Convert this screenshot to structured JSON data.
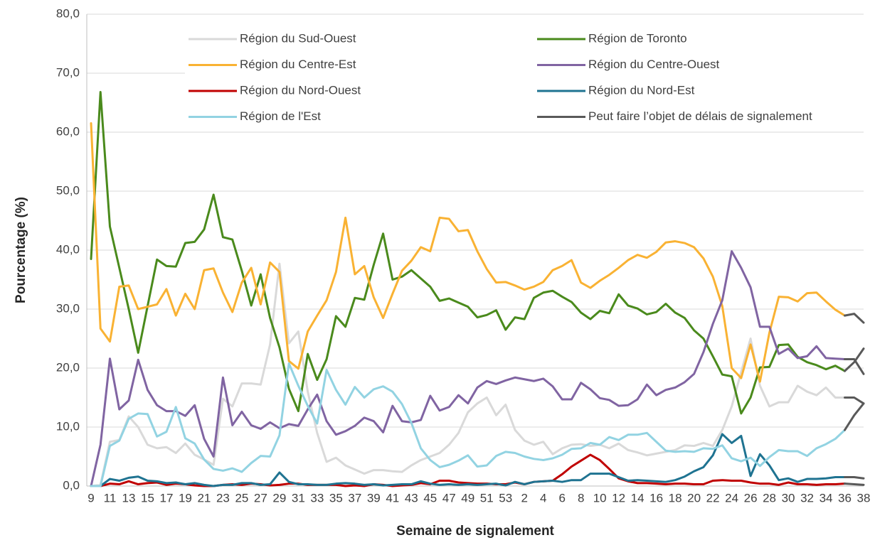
{
  "chart_data": {
    "type": "line",
    "ylabel": "Pourcentage (%)",
    "xlabel": "Semaine de signalement",
    "categories": [
      "9",
      null,
      "11",
      null,
      "13",
      null,
      "15",
      null,
      "17",
      null,
      "19",
      null,
      "21",
      null,
      "23",
      null,
      "25",
      null,
      "27",
      null,
      "29",
      null,
      "31",
      null,
      "33",
      null,
      "35",
      null,
      "37",
      null,
      "39",
      null,
      "41",
      null,
      "43",
      null,
      "45",
      null,
      "47",
      null,
      "49",
      null,
      "51",
      null,
      "53",
      null,
      "2",
      null,
      "4",
      null,
      "6",
      null,
      "8",
      null,
      "10",
      null,
      "12",
      null,
      "14",
      null,
      "16",
      null,
      "18",
      null,
      "20",
      null,
      "22",
      null,
      "24",
      null,
      "26",
      null,
      "28",
      null,
      "30",
      null,
      "32",
      null,
      "34",
      null,
      "36",
      null,
      "38"
    ],
    "ylim": [
      0,
      80
    ],
    "yticks": [
      {
        "value": 0,
        "label": "0,0"
      },
      {
        "value": 10,
        "label": "10,0"
      },
      {
        "value": 20,
        "label": "20,0"
      },
      {
        "value": 30,
        "label": "30,0"
      },
      {
        "value": 40,
        "label": "40,0"
      },
      {
        "value": 50,
        "label": "50,0"
      },
      {
        "value": 60,
        "label": "60,0"
      },
      {
        "value": 70,
        "label": "70,0"
      },
      {
        "value": 80,
        "label": "80,0"
      }
    ],
    "grid": true,
    "delayed_from": "36",
    "series": [
      {
        "name": "Région du Sud-Ouest",
        "color": "#d9d9d9",
        "values": [
          0.0,
          0.2,
          7.5,
          7.8,
          11.8,
          10.0,
          7.0,
          6.4,
          6.6,
          5.6,
          7.2,
          5.3,
          4.5,
          3.6,
          14.8,
          13.5,
          17.4,
          17.4,
          17.2,
          24.0,
          37.7,
          24.2,
          26.2,
          16.0,
          9.0,
          4.1,
          4.8,
          3.5,
          2.8,
          2.1,
          2.7,
          2.7,
          2.5,
          2.4,
          3.5,
          4.4,
          5.0,
          5.6,
          7.0,
          9.0,
          12.5,
          14.0,
          15.0,
          12.0,
          13.8,
          9.5,
          7.7,
          7.0,
          7.5,
          5.4,
          6.4,
          7.0,
          7.1,
          6.8,
          7.0,
          6.4,
          7.2,
          6.1,
          5.7,
          5.2,
          5.5,
          5.8,
          6.1,
          6.9,
          6.8,
          7.3,
          6.8,
          9.5,
          13.5,
          19.3,
          25.0,
          17.0,
          13.5,
          14.2,
          14.2,
          17.0,
          16.0,
          15.4,
          16.7,
          15.0,
          15.0,
          15.0,
          14.0
        ]
      },
      {
        "name": "Région de Toronto",
        "color": "#4a8a1c",
        "values": [
          38.5,
          66.8,
          44.0,
          37.0,
          30.0,
          22.6,
          30.5,
          38.4,
          37.3,
          37.2,
          41.2,
          41.4,
          43.5,
          49.4,
          42.2,
          41.8,
          36.5,
          30.6,
          35.9,
          28.5,
          23.5,
          16.5,
          12.7,
          22.4,
          18.0,
          21.5,
          28.8,
          27.0,
          31.9,
          31.6,
          37.5,
          42.8,
          35.0,
          35.5,
          36.6,
          35.2,
          33.8,
          31.4,
          31.8,
          31.1,
          30.4,
          28.6,
          29.0,
          29.8,
          26.5,
          28.6,
          28.3,
          31.9,
          32.8,
          33.1,
          32.1,
          31.2,
          29.4,
          28.3,
          29.7,
          29.3,
          32.5,
          30.6,
          30.1,
          29.1,
          29.5,
          30.9,
          29.4,
          28.5,
          26.4,
          25.0,
          22.0,
          18.9,
          18.6,
          12.3,
          15.0,
          20.1,
          20.2,
          23.9,
          24.0,
          21.9,
          21.0,
          20.5,
          19.8,
          20.4,
          19.5,
          21.0,
          23.3
        ]
      },
      {
        "name": "Région du Centre-Est",
        "color": "#f9b233",
        "values": [
          61.5,
          26.7,
          24.5,
          33.8,
          34.0,
          30.0,
          30.4,
          30.8,
          33.4,
          28.9,
          32.6,
          30.0,
          36.6,
          36.9,
          32.8,
          29.5,
          34.5,
          37.0,
          30.8,
          37.9,
          36.3,
          21.2,
          19.9,
          26.2,
          28.9,
          31.5,
          36.3,
          45.5,
          35.9,
          37.3,
          32.0,
          28.5,
          32.6,
          36.5,
          38.2,
          40.5,
          39.8,
          45.5,
          45.3,
          43.2,
          43.4,
          39.8,
          36.8,
          34.5,
          34.6,
          34.0,
          33.3,
          33.8,
          34.6,
          36.6,
          37.3,
          38.3,
          34.5,
          33.6,
          34.8,
          35.8,
          37.0,
          38.3,
          39.2,
          38.7,
          39.7,
          41.3,
          41.5,
          41.2,
          40.5,
          38.6,
          35.5,
          30.5,
          20.0,
          18.3,
          24.0,
          17.7,
          26.0,
          32.1,
          32.0,
          31.3,
          32.7,
          32.8,
          31.3,
          29.9,
          28.9,
          29.2,
          27.7
        ]
      },
      {
        "name": "Région du Centre-Ouest",
        "color": "#8064a2",
        "values": [
          0.0,
          7.0,
          21.6,
          13.0,
          14.5,
          21.4,
          16.3,
          13.7,
          12.7,
          12.7,
          11.9,
          13.7,
          8.0,
          5.0,
          18.4,
          10.3,
          12.6,
          10.3,
          9.7,
          10.8,
          9.8,
          10.5,
          10.2,
          13.0,
          15.5,
          11.0,
          8.7,
          9.3,
          10.2,
          11.6,
          11.0,
          9.1,
          13.6,
          11.0,
          10.8,
          11.2,
          15.3,
          12.8,
          13.4,
          15.4,
          14.0,
          16.7,
          17.8,
          17.3,
          17.9,
          18.4,
          18.1,
          17.8,
          18.2,
          16.9,
          14.7,
          14.7,
          17.5,
          16.4,
          14.9,
          14.6,
          13.6,
          13.7,
          14.7,
          17.2,
          15.4,
          16.3,
          16.7,
          17.6,
          19.0,
          22.7,
          27.5,
          31.5,
          39.8,
          37.0,
          33.7,
          27.0,
          27.0,
          22.4,
          23.3,
          21.7,
          22.0,
          23.7,
          21.7,
          21.6,
          21.5,
          21.5,
          19.0
        ]
      },
      {
        "name": "Région du Nord-Ouest",
        "color": "#c00000",
        "values": [
          0.0,
          0.0,
          0.4,
          0.3,
          0.8,
          0.3,
          0.5,
          0.6,
          0.2,
          0.4,
          0.3,
          0.1,
          0.0,
          0.0,
          0.2,
          0.3,
          0.2,
          0.4,
          0.3,
          0.1,
          0.2,
          0.4,
          0.4,
          0.2,
          0.2,
          0.2,
          0.2,
          0.0,
          0.1,
          0.0,
          0.3,
          0.2,
          0.0,
          0.1,
          0.2,
          0.5,
          0.3,
          0.9,
          0.9,
          0.6,
          0.5,
          0.4,
          0.4,
          0.3,
          0.3,
          0.6,
          0.3,
          0.7,
          0.8,
          0.9,
          2.0,
          3.3,
          4.3,
          5.3,
          4.4,
          2.9,
          1.3,
          0.8,
          0.5,
          0.5,
          0.4,
          0.3,
          0.4,
          0.4,
          0.3,
          0.3,
          0.9,
          1.0,
          0.9,
          0.9,
          0.6,
          0.4,
          0.4,
          0.2,
          0.6,
          0.3,
          0.3,
          0.2,
          0.3,
          0.3,
          0.4,
          0.3,
          0.2
        ]
      },
      {
        "name": "Région du Nord-Est",
        "color": "#1f7391",
        "values": [
          0.0,
          0.0,
          1.2,
          0.9,
          1.4,
          1.6,
          0.9,
          0.8,
          0.5,
          0.6,
          0.3,
          0.5,
          0.2,
          0.0,
          0.2,
          0.2,
          0.5,
          0.5,
          0.2,
          0.3,
          2.3,
          0.7,
          0.3,
          0.3,
          0.2,
          0.2,
          0.4,
          0.5,
          0.4,
          0.2,
          0.3,
          0.1,
          0.2,
          0.3,
          0.3,
          0.8,
          0.4,
          0.2,
          0.3,
          0.2,
          0.3,
          0.2,
          0.3,
          0.4,
          0.1,
          0.7,
          0.3,
          0.7,
          0.8,
          0.9,
          0.7,
          1.0,
          1.0,
          2.1,
          2.1,
          2.1,
          1.5,
          0.9,
          1.0,
          0.9,
          0.8,
          0.7,
          1.0,
          1.6,
          2.5,
          3.2,
          5.2,
          8.8,
          7.3,
          8.5,
          1.7,
          5.4,
          3.5,
          1.0,
          1.3,
          0.7,
          1.2,
          1.2,
          1.3,
          1.5,
          1.5,
          1.5,
          1.3
        ]
      },
      {
        "name": "Région de l'Est",
        "color": "#92d3e2",
        "values": [
          0.0,
          0.0,
          6.8,
          7.7,
          11.4,
          12.3,
          12.2,
          8.4,
          9.2,
          13.4,
          8.1,
          7.2,
          4.5,
          2.9,
          2.6,
          3.0,
          2.4,
          3.9,
          5.1,
          5.0,
          8.6,
          20.8,
          17.0,
          13.6,
          10.6,
          19.7,
          16.3,
          13.8,
          16.8,
          15.0,
          16.4,
          16.9,
          16.0,
          13.9,
          10.7,
          6.4,
          4.4,
          3.2,
          3.6,
          4.3,
          5.2,
          3.3,
          3.5,
          5.1,
          5.8,
          5.6,
          5.0,
          4.6,
          4.4,
          4.7,
          5.3,
          6.3,
          6.4,
          7.3,
          7.0,
          8.3,
          7.8,
          8.7,
          8.7,
          9.0,
          7.5,
          6.0,
          5.8,
          5.9,
          5.8,
          6.4,
          6.3,
          6.9,
          4.7,
          4.2,
          4.8,
          3.4,
          4.9,
          6.1,
          5.9,
          5.9,
          5.1,
          6.4,
          7.1,
          8.0,
          9.5,
          12.0,
          14.0
        ]
      },
      {
        "name": "Peut faire l’objet de délais de signalement",
        "color": "#595959"
      }
    ]
  }
}
